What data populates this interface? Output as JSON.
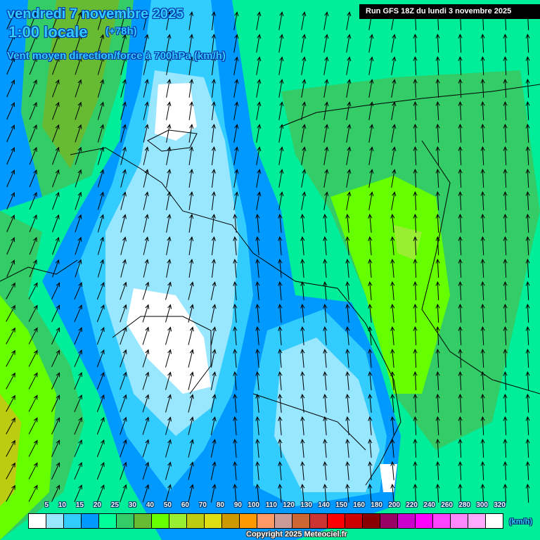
{
  "header": {
    "date": "vendredi 7 novembre 2025",
    "time": "1:00 locale",
    "lead": "(+78h)",
    "parameter": "Vent moyen direction/force à 700hPa (km/h)",
    "run": "Run GFS 18Z du lundi 3 novembre 2025"
  },
  "legend": {
    "unit": "(km/h)",
    "labels": [
      "5",
      "10",
      "15",
      "20",
      "25",
      "30",
      "40",
      "50",
      "60",
      "70",
      "80",
      "90",
      "100",
      "110",
      "120",
      "130",
      "140",
      "150",
      "160",
      "180",
      "200",
      "220",
      "240",
      "260",
      "280",
      "300",
      "320"
    ],
    "colors": [
      "#ffffff",
      "#99e6ff",
      "#33ccff",
      "#0099ff",
      "#00ff99",
      "#33cc66",
      "#66bb33",
      "#66ff00",
      "#99ee33",
      "#bbcc11",
      "#dddd11",
      "#cc9900",
      "#ff9900",
      "#ff9966",
      "#cc9999",
      "#cc6633",
      "#cc3333",
      "#ff0000",
      "#cc0000",
      "#880000",
      "#990066",
      "#cc00cc",
      "#ff00ff",
      "#ff44ff",
      "#ff88ff",
      "#ffaaff",
      "#ffffff"
    ]
  },
  "footer": {
    "copyright": "Copyright 2025 Meteociel.fr"
  }
}
